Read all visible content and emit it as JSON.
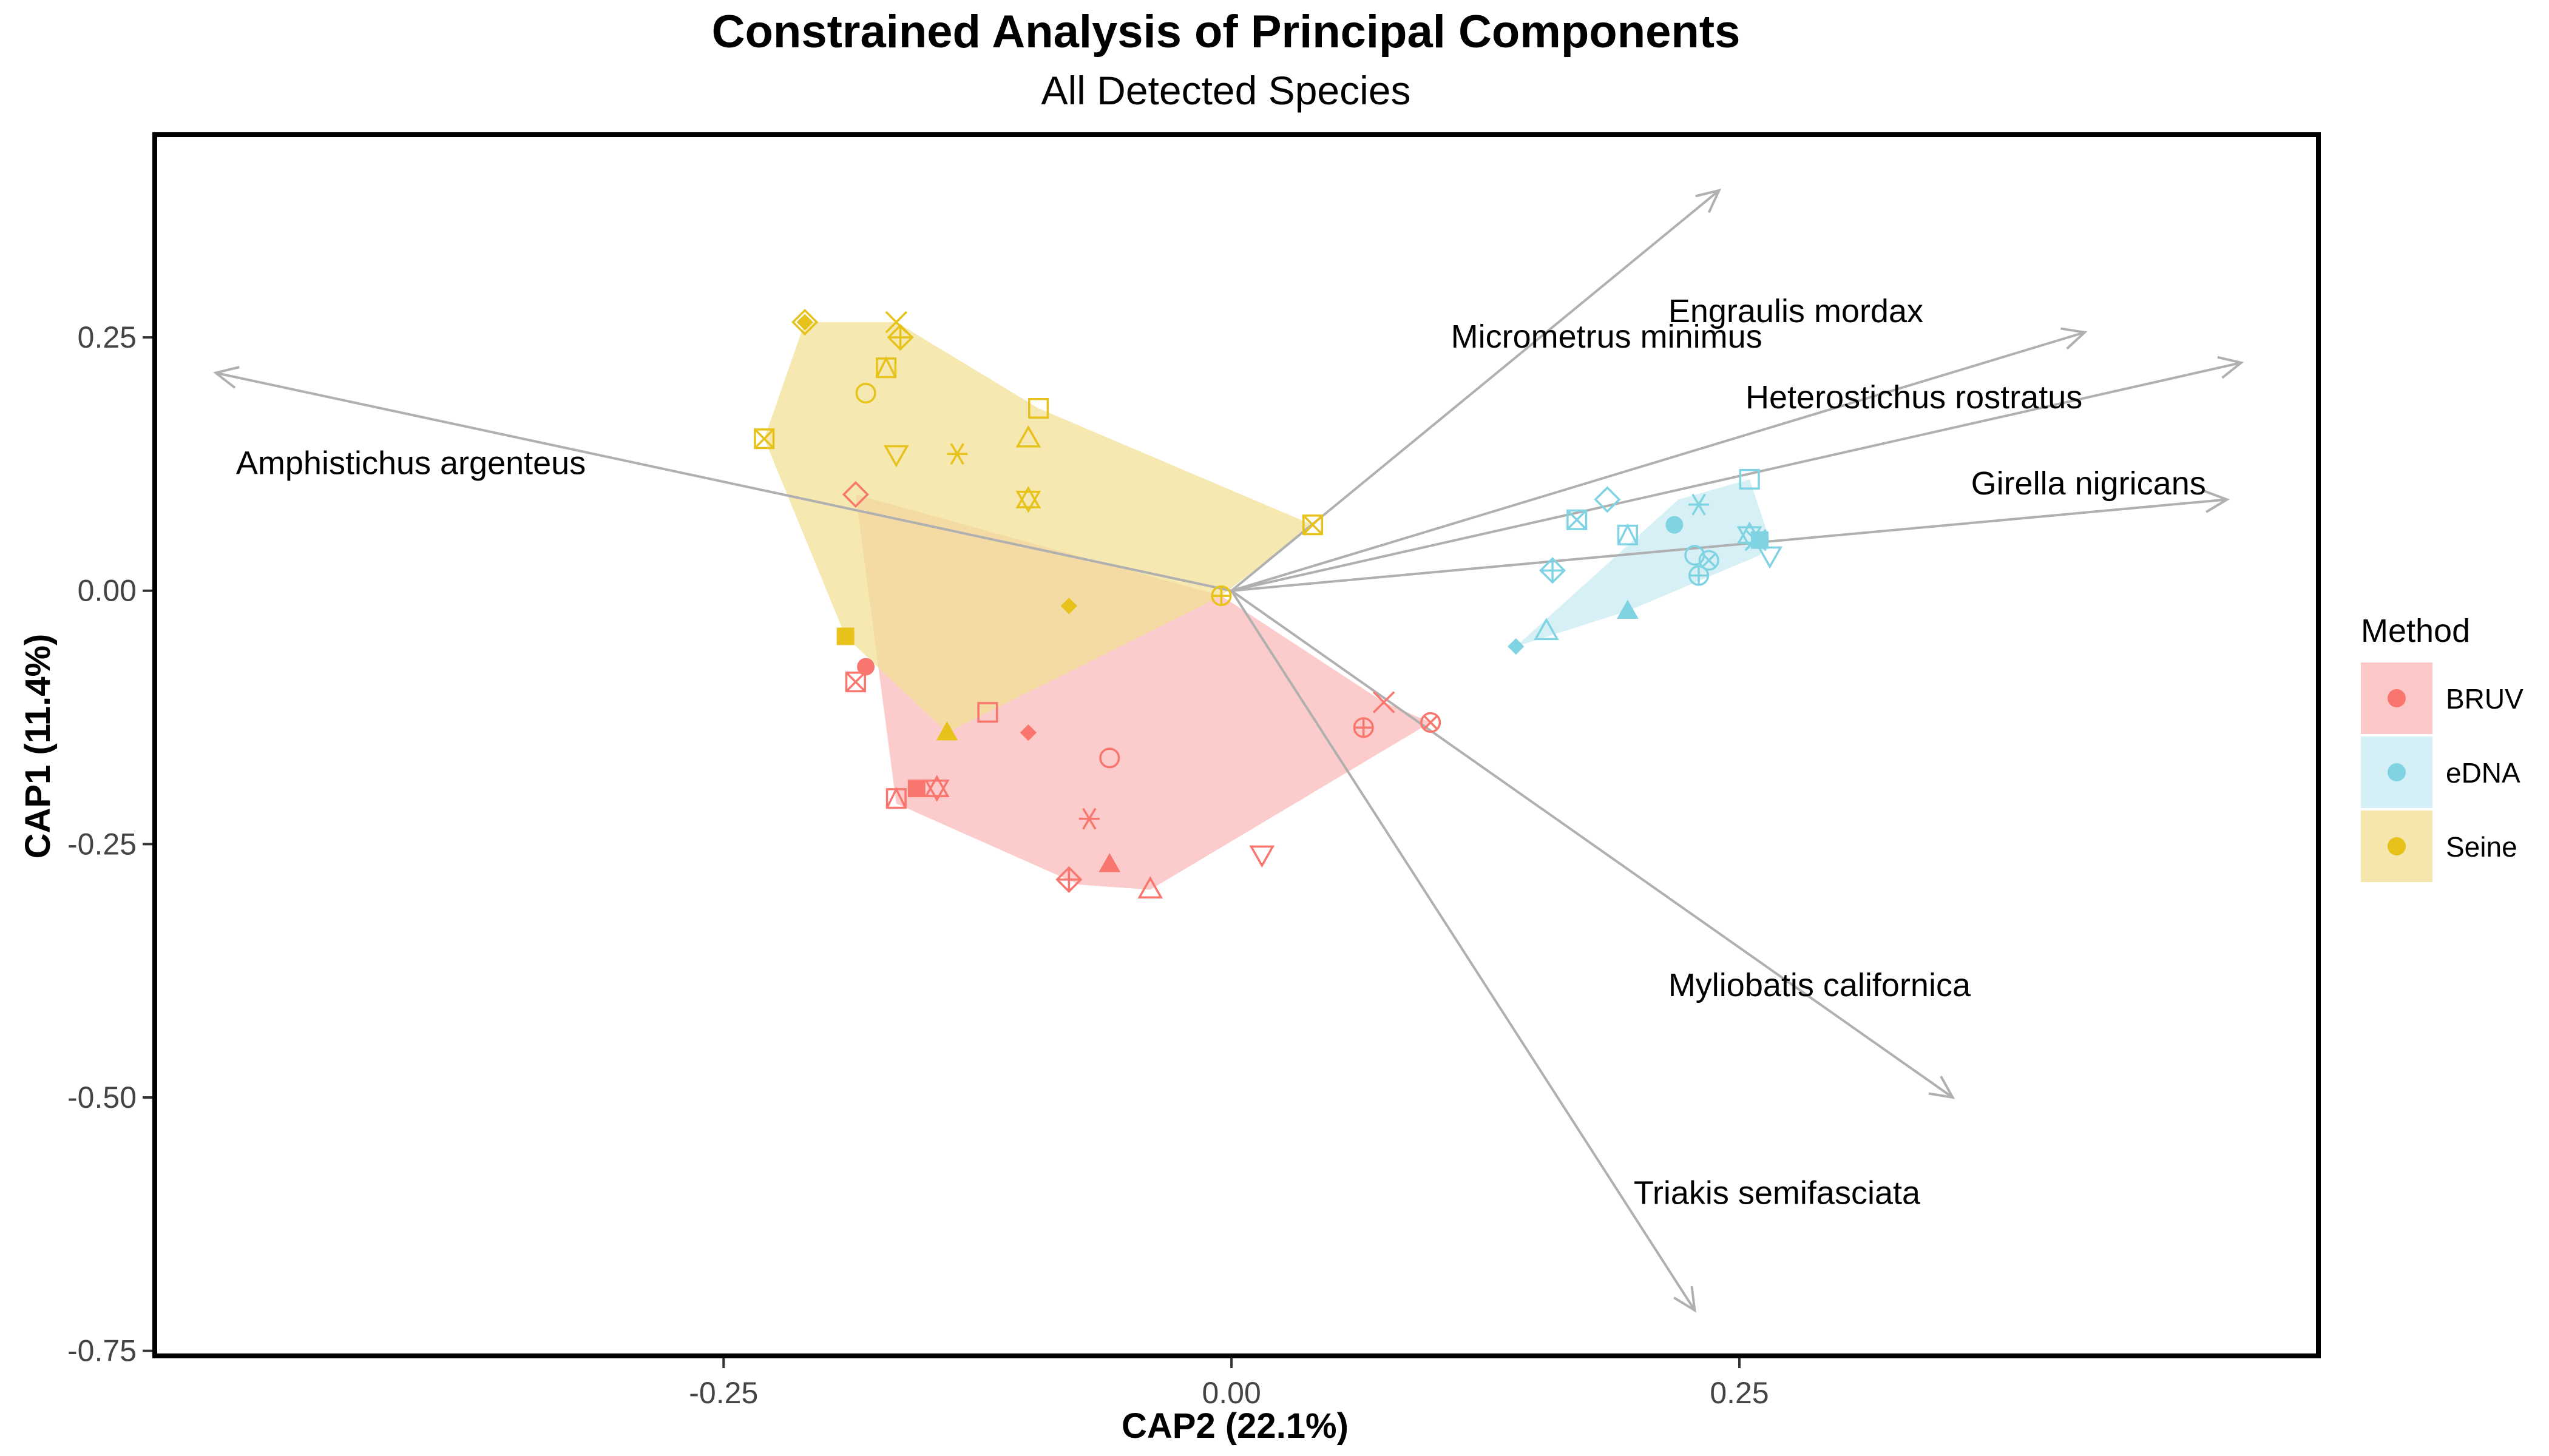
{
  "chart_data": {
    "type": "scatter",
    "title": "Constrained Analysis of Principal Components",
    "subtitle": "All Detected Species",
    "xlabel": "CAP2 (22.1%)",
    "ylabel": "CAP1 (11.4%)",
    "xlim": [
      -0.53,
      0.535
    ],
    "ylim": [
      -0.755,
      0.45
    ],
    "x_ticks": [
      -0.25,
      0.0,
      0.25
    ],
    "x_tick_labels": [
      "-0.25",
      "0.00",
      "0.25"
    ],
    "y_ticks": [
      0.25,
      0.0,
      -0.25,
      -0.5,
      -0.75
    ],
    "y_tick_labels": [
      "0.25",
      "0.00",
      "-0.25",
      "-0.50",
      "-0.75"
    ],
    "grid": false,
    "legend": {
      "title": "Method",
      "placement": "right",
      "entries": [
        {
          "label": "BRUV",
          "color": "#F8766D"
        },
        {
          "label": "eDNA",
          "color": "#7FD3E3"
        },
        {
          "label": "Seine",
          "color": "#E6C21B"
        }
      ]
    },
    "hull_colors": {
      "BRUV": "#FBB9B9",
      "eDNA": "#C9EBF2",
      "Seine": "#F1E097"
    },
    "arrows": [
      {
        "label": "Amphistichus argenteus",
        "x": -0.5,
        "y": 0.215,
        "label_x": -0.49,
        "label_y": 0.115
      },
      {
        "label": "Micrometrus minimus",
        "x": 0.24,
        "y": 0.395,
        "label_x": 0.108,
        "label_y": 0.24
      },
      {
        "label": "Engraulis mordax",
        "x": 0.42,
        "y": 0.255,
        "label_x": 0.215,
        "label_y": 0.265
      },
      {
        "label": "Heterostichus rostratus",
        "x": 0.497,
        "y": 0.225,
        "label_x": 0.253,
        "label_y": 0.18
      },
      {
        "label": "Girella nigricans",
        "x": 0.49,
        "y": 0.09,
        "label_x": 0.364,
        "label_y": 0.095
      },
      {
        "label": "Myliobatis californica",
        "x": 0.355,
        "y": -0.5,
        "label_x": 0.215,
        "label_y": -0.4
      },
      {
        "label": "Triakis semifasciata",
        "x": 0.228,
        "y": -0.71,
        "label_x": 0.198,
        "label_y": -0.605
      }
    ],
    "series": [
      {
        "name": "BRUV",
        "hull": [
          [
            -0.185,
            0.095
          ],
          [
            -0.165,
            -0.21
          ],
          [
            -0.075,
            -0.29
          ],
          [
            -0.04,
            -0.295
          ],
          [
            0.098,
            -0.13
          ],
          [
            0.075,
            -0.11
          ],
          [
            -0.005,
            -0.005
          ]
        ],
        "points": [
          {
            "x": -0.185,
            "y": 0.095,
            "shape": "diamond-open"
          },
          {
            "x": -0.18,
            "y": -0.075,
            "shape": "circle-filled"
          },
          {
            "x": -0.185,
            "y": -0.09,
            "shape": "square-x"
          },
          {
            "x": -0.165,
            "y": -0.205,
            "shape": "square-triangle"
          },
          {
            "x": -0.155,
            "y": -0.195,
            "shape": "square-filled"
          },
          {
            "x": -0.145,
            "y": -0.195,
            "shape": "star-of-david"
          },
          {
            "x": -0.12,
            "y": -0.12,
            "shape": "square-open"
          },
          {
            "x": -0.1,
            "y": -0.14,
            "shape": "diamond-filled"
          },
          {
            "x": -0.06,
            "y": -0.165,
            "shape": "circle-open"
          },
          {
            "x": -0.07,
            "y": -0.225,
            "shape": "asterisk"
          },
          {
            "x": -0.08,
            "y": -0.285,
            "shape": "diamond-plus"
          },
          {
            "x": -0.06,
            "y": -0.27,
            "shape": "triangle-filled"
          },
          {
            "x": -0.04,
            "y": -0.295,
            "shape": "triangle-open"
          },
          {
            "x": 0.015,
            "y": -0.26,
            "shape": "triangle-down-open"
          },
          {
            "x": 0.065,
            "y": -0.135,
            "shape": "circle-plus"
          },
          {
            "x": 0.075,
            "y": -0.11,
            "shape": "cross"
          },
          {
            "x": 0.098,
            "y": -0.13,
            "shape": "circle-x"
          }
        ]
      },
      {
        "name": "eDNA",
        "hull": [
          [
            0.14,
            -0.055
          ],
          [
            0.22,
            0.09
          ],
          [
            0.255,
            0.11
          ],
          [
            0.265,
            0.05
          ],
          [
            0.26,
            0.035
          ],
          [
            0.195,
            -0.02
          ]
        ],
        "points": [
          {
            "x": 0.14,
            "y": -0.055,
            "shape": "diamond-filled"
          },
          {
            "x": 0.155,
            "y": -0.04,
            "shape": "triangle-open"
          },
          {
            "x": 0.158,
            "y": 0.02,
            "shape": "diamond-plus"
          },
          {
            "x": 0.17,
            "y": 0.07,
            "shape": "square-x"
          },
          {
            "x": 0.185,
            "y": 0.09,
            "shape": "diamond-open"
          },
          {
            "x": 0.195,
            "y": 0.055,
            "shape": "square-triangle"
          },
          {
            "x": 0.195,
            "y": -0.02,
            "shape": "triangle-filled"
          },
          {
            "x": 0.218,
            "y": 0.065,
            "shape": "circle-filled"
          },
          {
            "x": 0.23,
            "y": 0.085,
            "shape": "asterisk"
          },
          {
            "x": 0.228,
            "y": 0.035,
            "shape": "circle-open"
          },
          {
            "x": 0.23,
            "y": 0.015,
            "shape": "circle-plus"
          },
          {
            "x": 0.235,
            "y": 0.03,
            "shape": "circle-x"
          },
          {
            "x": 0.255,
            "y": 0.11,
            "shape": "square-open"
          },
          {
            "x": 0.255,
            "y": 0.055,
            "shape": "star-of-david"
          },
          {
            "x": 0.258,
            "y": 0.05,
            "shape": "cross"
          },
          {
            "x": 0.26,
            "y": 0.05,
            "shape": "square-filled"
          },
          {
            "x": 0.265,
            "y": 0.035,
            "shape": "triangle-down-open"
          }
        ]
      },
      {
        "name": "Seine",
        "hull": [
          [
            -0.21,
            0.265
          ],
          [
            -0.165,
            0.265
          ],
          [
            -0.095,
            0.18
          ],
          [
            0.04,
            0.065
          ],
          [
            -0.005,
            -0.005
          ],
          [
            -0.14,
            -0.14
          ],
          [
            -0.19,
            -0.045
          ],
          [
            -0.23,
            0.15
          ]
        ],
        "points": [
          {
            "x": -0.21,
            "y": 0.265,
            "shape": "diamond-filled"
          },
          {
            "x": -0.21,
            "y": 0.265,
            "shape": "diamond-open"
          },
          {
            "x": -0.165,
            "y": 0.265,
            "shape": "cross"
          },
          {
            "x": -0.163,
            "y": 0.25,
            "shape": "diamond-plus"
          },
          {
            "x": -0.17,
            "y": 0.22,
            "shape": "square-triangle"
          },
          {
            "x": -0.18,
            "y": 0.195,
            "shape": "circle-open"
          },
          {
            "x": -0.23,
            "y": 0.15,
            "shape": "square-x"
          },
          {
            "x": -0.095,
            "y": 0.18,
            "shape": "square-open"
          },
          {
            "x": -0.165,
            "y": 0.135,
            "shape": "triangle-down-open"
          },
          {
            "x": -0.135,
            "y": 0.135,
            "shape": "asterisk"
          },
          {
            "x": -0.1,
            "y": 0.15,
            "shape": "triangle-open"
          },
          {
            "x": -0.1,
            "y": 0.09,
            "shape": "star-of-david"
          },
          {
            "x": 0.04,
            "y": 0.065,
            "shape": "square-x"
          },
          {
            "x": -0.005,
            "y": -0.005,
            "shape": "circle-plus"
          },
          {
            "x": -0.08,
            "y": -0.015,
            "shape": "diamond-filled"
          },
          {
            "x": -0.19,
            "y": -0.045,
            "shape": "square-filled"
          },
          {
            "x": -0.14,
            "y": -0.14,
            "shape": "triangle-filled"
          }
        ]
      }
    ]
  }
}
